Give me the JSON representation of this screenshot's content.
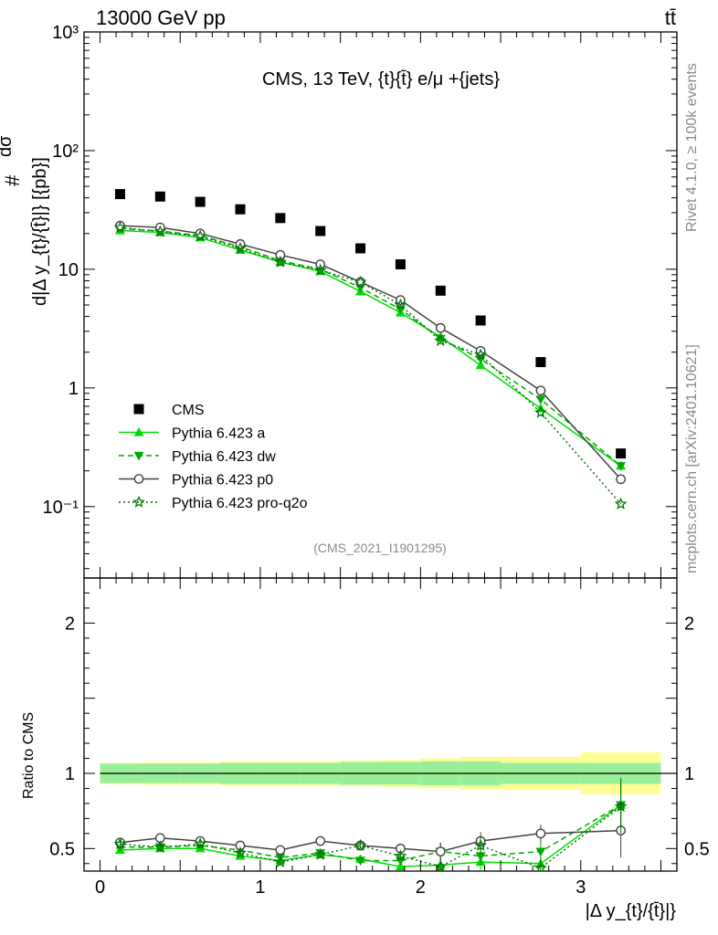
{
  "header": {
    "left": "13000 GeV pp",
    "right": "tt̄"
  },
  "side_labels": {
    "rivet": "Rivet 4.1.0, ≥ 100k events",
    "mcplots": "mcplots.cern.ch [arXiv:2401.10621]"
  },
  "chart_data": [
    {
      "type": "scatter",
      "title": "CMS, 13 TeV, {t}{t̄} e/μ +{jets}",
      "analysis_id": "(CMS_2021_I1901295)",
      "ylabel": "d|Δ y_{t}/{t̄}|} [{pb}]",
      "ylabel_top": "dσ",
      "yscale": "log",
      "ylim": [
        0.025,
        1000
      ],
      "yticks": [
        "10⁻¹",
        "1",
        "10",
        "10²",
        "10³"
      ],
      "x": [
        0.125,
        0.375,
        0.625,
        0.875,
        1.125,
        1.375,
        1.625,
        1.875,
        2.125,
        2.375,
        2.75,
        3.25
      ],
      "xlim": [
        -0.1,
        3.6
      ],
      "series": [
        {
          "name": "CMS",
          "color": "#000000",
          "marker": "square",
          "values": [
            43,
            41,
            37,
            32,
            27,
            21,
            15,
            11,
            6.6,
            3.7,
            1.65,
            0.28
          ]
        },
        {
          "name": "Pythia 6.423 a",
          "color": "#00dd00",
          "marker": "triangle-up",
          "line": "solid",
          "values": [
            21.2,
            20.4,
            18.5,
            14.5,
            11.5,
            9.6,
            6.5,
            4.3,
            2.7,
            1.55,
            0.67,
            0.22
          ]
        },
        {
          "name": "Pythia 6.423 dw",
          "color": "#00aa00",
          "marker": "triangle-down",
          "line": "dashed",
          "values": [
            22,
            21,
            19.2,
            15.5,
            11.8,
            10,
            7,
            4.6,
            2.6,
            1.75,
            0.8,
            0.22
          ]
        },
        {
          "name": "Pythia 6.423 p0",
          "color": "#444444",
          "marker": "circle-open",
          "line": "solid",
          "values": [
            23.3,
            22.5,
            20,
            16.3,
            13.2,
            11,
            7.8,
            5.5,
            3.2,
            2.05,
            0.95,
            0.17
          ]
        },
        {
          "name": "Pythia 6.423 pro-q2o",
          "color": "#007700",
          "marker": "star-open",
          "line": "dotted",
          "values": [
            22.5,
            20.8,
            19,
            15,
            11.5,
            9.8,
            7.8,
            5,
            2.5,
            1.9,
            0.62,
            0.105
          ]
        }
      ],
      "legend": [
        "CMS",
        "Pythia 6.423 a",
        "Pythia 6.423 dw",
        "Pythia 6.423 p0",
        "Pythia 6.423 pro-q2o"
      ],
      "legend_position": "bottom-left"
    },
    {
      "type": "scatter",
      "ylabel": "Ratio to CMS",
      "xlabel": "|Δ y_{t}/{t̄}|}",
      "ylim": [
        0.35,
        2.3
      ],
      "yticks": [
        "0.5",
        "1",
        "2"
      ],
      "xticks": [
        "0",
        "1",
        "2",
        "3"
      ],
      "xlim": [
        -0.1,
        3.6
      ],
      "bins": [
        [
          0,
          0.25
        ],
        [
          0.25,
          0.5
        ],
        [
          0.5,
          0.75
        ],
        [
          0.75,
          1.0
        ],
        [
          1.0,
          1.25
        ],
        [
          1.25,
          1.5
        ],
        [
          1.5,
          1.75
        ],
        [
          1.75,
          2.0
        ],
        [
          2.0,
          2.25
        ],
        [
          2.25,
          2.5
        ],
        [
          2.5,
          3.0
        ],
        [
          3.0,
          3.5
        ]
      ],
      "band_inner": [
        0.065,
        0.065,
        0.065,
        0.07,
        0.07,
        0.07,
        0.075,
        0.075,
        0.08,
        0.08,
        0.07,
        0.07
      ],
      "band_outer": [
        0.07,
        0.075,
        0.075,
        0.08,
        0.08,
        0.08,
        0.085,
        0.09,
        0.1,
        0.11,
        0.11,
        0.14
      ],
      "x": [
        0.125,
        0.375,
        0.625,
        0.875,
        1.125,
        1.375,
        1.625,
        1.875,
        2.125,
        2.375,
        2.75,
        3.25
      ],
      "series": [
        {
          "name": "Pythia 6.423 a",
          "values": [
            0.49,
            0.5,
            0.5,
            0.45,
            0.42,
            0.46,
            0.43,
            0.38,
            0.39,
            0.41,
            0.4,
            0.79
          ]
        },
        {
          "name": "Pythia 6.423 dw",
          "values": [
            0.51,
            0.51,
            0.52,
            0.49,
            0.44,
            0.47,
            0.42,
            0.42,
            0.48,
            0.45,
            0.48,
            0.79
          ]
        },
        {
          "name": "Pythia 6.423 p0",
          "values": [
            0.54,
            0.57,
            0.55,
            0.52,
            0.49,
            0.55,
            0.52,
            0.5,
            0.48,
            0.55,
            0.6,
            0.62
          ]
        },
        {
          "name": "Pythia 6.423 pro-q2o",
          "values": [
            0.53,
            0.51,
            0.53,
            0.47,
            0.41,
            0.46,
            0.52,
            0.45,
            0.38,
            0.52,
            0.37,
            0.78
          ]
        }
      ]
    }
  ]
}
